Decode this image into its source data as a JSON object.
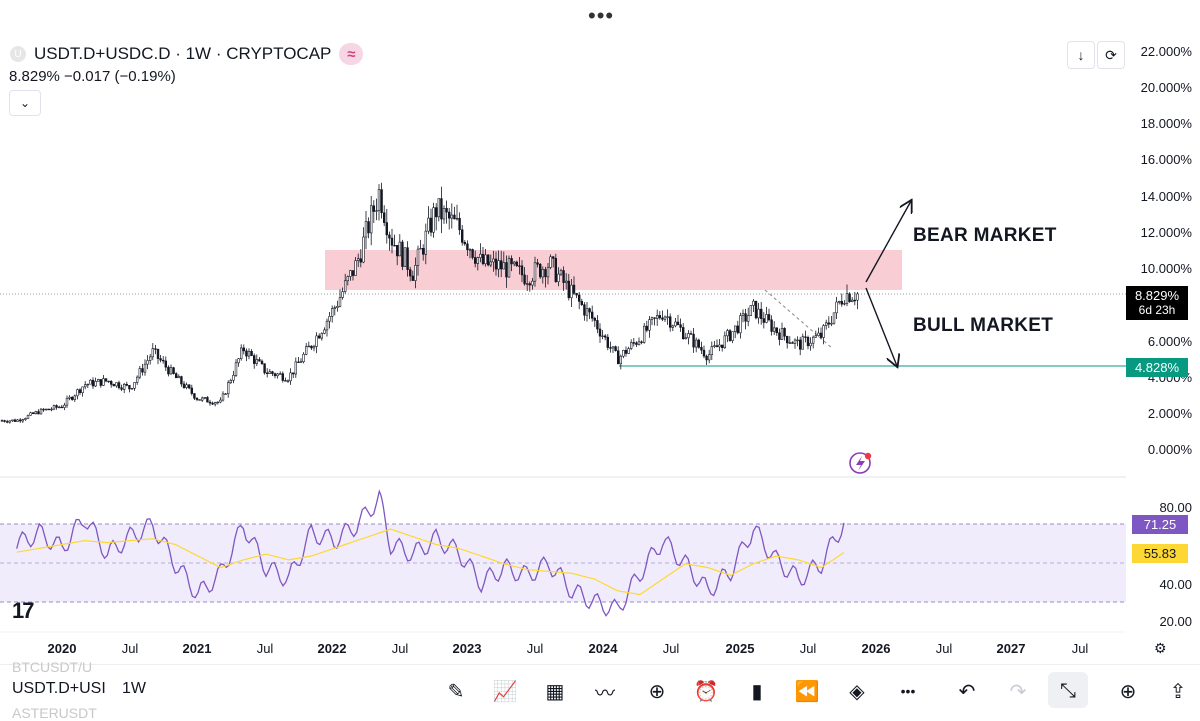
{
  "header": {
    "symbol_icon": "U",
    "title": "USDT.D+USDC.D · 1W · CRYPTOCAP",
    "badge_icon": "≈",
    "price_line": "8.829%  −0.017 (−0.19%)",
    "collapse_icon": "chevron-down-icon",
    "collapse_glyph": "⌄",
    "download_glyph": "↓",
    "fullscreen_glyph": "⟳"
  },
  "top_menu": "•••",
  "price_axis": {
    "labels": [
      "22.000%",
      "20.000%",
      "18.000%",
      "16.000%",
      "14.000%",
      "12.000%",
      "10.000%",
      "6.000%",
      "4.000%",
      "2.000%",
      "0.000%"
    ]
  },
  "price_tags": {
    "current": "8.829%",
    "countdown": "6d 23h",
    "support": "4.828%",
    "current_color": "#000000",
    "support_color": "#089981"
  },
  "rsi_axis": {
    "labels": [
      "80.00",
      "40.00",
      "20.00"
    ],
    "rsi_tag": "71.25",
    "ma_tag": "55.83",
    "rsi_color": "#7e57c2",
    "ma_color": "#fdd835"
  },
  "time_axis": [
    {
      "label": "2020",
      "year": true
    },
    {
      "label": "Jul",
      "year": false
    },
    {
      "label": "2021",
      "year": true
    },
    {
      "label": "Jul",
      "year": false
    },
    {
      "label": "2022",
      "year": true
    },
    {
      "label": "Jul",
      "year": false
    },
    {
      "label": "2023",
      "year": true
    },
    {
      "label": "Jul",
      "year": false
    },
    {
      "label": "2024",
      "year": true
    },
    {
      "label": "Jul",
      "year": false
    },
    {
      "label": "2025",
      "year": true
    },
    {
      "label": "Jul",
      "year": false
    },
    {
      "label": "2026",
      "year": true
    },
    {
      "label": "Jul",
      "year": false
    },
    {
      "label": "2027",
      "year": true
    },
    {
      "label": "Jul",
      "year": false
    }
  ],
  "annotations": {
    "bear": "BEAR MARKET",
    "bull": "BULL MARKET"
  },
  "logo": "17",
  "toolbar": {
    "symbol": "USDT.D+USI",
    "ghost_top": "BTCUSDT/U",
    "ghost_bottom": "ASTERUSDT",
    "timeframe": "1W",
    "icons": [
      {
        "name": "draw-icon",
        "glyph": "✎",
        "active": false,
        "dim": false
      },
      {
        "name": "indicators-icon",
        "glyph": "📈",
        "active": false,
        "dim": false
      },
      {
        "name": "layout-grid-icon",
        "glyph": "▦",
        "active": false,
        "dim": false
      },
      {
        "name": "compare-icon",
        "glyph": "〰",
        "active": false,
        "dim": false
      },
      {
        "name": "add-icon",
        "glyph": "⊕",
        "active": false,
        "dim": false
      },
      {
        "name": "alert-clock-icon",
        "glyph": "⏰",
        "active": false,
        "dim": false
      },
      {
        "name": "candles-icon",
        "glyph": "▮",
        "active": false,
        "dim": false
      },
      {
        "name": "replay-icon",
        "glyph": "⏪",
        "active": false,
        "dim": false
      },
      {
        "name": "layers-icon",
        "glyph": "◈",
        "active": false,
        "dim": false
      },
      {
        "name": "more-icon",
        "glyph": "•••",
        "active": false,
        "dim": false
      },
      {
        "name": "undo-icon",
        "glyph": "↶",
        "active": false,
        "dim": false
      },
      {
        "name": "redo-icon",
        "glyph": "↷",
        "active": false,
        "dim": true
      },
      {
        "name": "collapse-icon",
        "glyph": "⤡",
        "active": true,
        "dim": false
      },
      {
        "name": "zoom-icon",
        "glyph": "⊕",
        "active": false,
        "dim": false
      },
      {
        "name": "share-icon",
        "glyph": "⇪",
        "active": false,
        "dim": false
      }
    ]
  },
  "chart_data": [
    {
      "type": "candlestick",
      "title": "USDT.D+USDC.D · 1W · CRYPTOCAP",
      "unit": "%",
      "ylim": [
        0,
        22
      ],
      "x_range": [
        "2019-09",
        "2027-10"
      ],
      "series": [
        {
          "name": "USDT.D+USDC.D",
          "x": [
            "2019-09",
            "2019-11",
            "2020-01",
            "2020-03",
            "2020-05",
            "2020-07",
            "2020-09",
            "2020-11",
            "2021-01",
            "2021-03",
            "2021-05",
            "2021-07",
            "2021-09",
            "2021-11",
            "2022-01",
            "2022-03",
            "2022-05",
            "2022-06",
            "2022-08",
            "2022-10",
            "2022-12",
            "2023-02",
            "2023-04",
            "2023-06",
            "2023-08",
            "2023-10",
            "2023-12",
            "2024-02",
            "2024-04",
            "2024-06",
            "2024-08",
            "2024-10",
            "2024-12",
            "2025-02",
            "2025-04",
            "2025-06",
            "2025-08",
            "2025-10"
          ],
          "values": [
            1.8,
            2.3,
            2.6,
            3.8,
            4.0,
            3.6,
            5.6,
            4.2,
            3.0,
            2.8,
            5.8,
            4.5,
            4.2,
            6.0,
            8.0,
            10.5,
            14.5,
            12.0,
            10.0,
            13.5,
            12.5,
            10.5,
            10.3,
            9.8,
            10.5,
            8.8,
            7.3,
            5.2,
            6.4,
            7.8,
            6.6,
            5.4,
            6.6,
            8.0,
            6.8,
            6.0,
            6.5,
            8.8
          ]
        }
      ],
      "current_value": 8.829,
      "support_level": 4.828,
      "resistance_zone": [
        9.0,
        11.2
      ],
      "annotations": [
        "BEAR MARKET",
        "BULL MARKET"
      ]
    },
    {
      "type": "line",
      "title": "RSI",
      "ylim": [
        10,
        90
      ],
      "bands": [
        30,
        50,
        70
      ],
      "series": [
        {
          "name": "RSI",
          "x": [
            "2019-09",
            "2019-11",
            "2020-01",
            "2020-03",
            "2020-05",
            "2020-07",
            "2020-09",
            "2020-11",
            "2021-01",
            "2021-03",
            "2021-05",
            "2021-07",
            "2021-09",
            "2021-11",
            "2022-01",
            "2022-03",
            "2022-05",
            "2022-06",
            "2022-08",
            "2022-10",
            "2022-12",
            "2023-02",
            "2023-04",
            "2023-06",
            "2023-08",
            "2023-10",
            "2023-12",
            "2024-02",
            "2024-04",
            "2024-06",
            "2024-08",
            "2024-10",
            "2024-12",
            "2025-02",
            "2025-04",
            "2025-06",
            "2025-08",
            "2025-10"
          ],
          "values": [
            60,
            66,
            58,
            74,
            55,
            64,
            70,
            50,
            34,
            45,
            70,
            48,
            42,
            66,
            62,
            70,
            84,
            60,
            55,
            63,
            56,
            40,
            48,
            44,
            50,
            36,
            30,
            26,
            45,
            62,
            50,
            36,
            46,
            68,
            52,
            42,
            50,
            71.25
          ]
        },
        {
          "name": "RSI MA",
          "x": [
            "2019-09",
            "2019-11",
            "2020-01",
            "2020-03",
            "2020-05",
            "2020-07",
            "2020-09",
            "2020-11",
            "2021-01",
            "2021-03",
            "2021-05",
            "2021-07",
            "2021-09",
            "2021-11",
            "2022-01",
            "2022-03",
            "2022-05",
            "2022-06",
            "2022-08",
            "2022-10",
            "2022-12",
            "2023-02",
            "2023-04",
            "2023-06",
            "2023-08",
            "2023-10",
            "2023-12",
            "2024-02",
            "2024-04",
            "2024-06",
            "2024-08",
            "2024-10",
            "2024-12",
            "2025-02",
            "2025-04",
            "2025-06",
            "2025-08",
            "2025-10"
          ],
          "values": [
            56,
            58,
            60,
            62,
            61,
            62,
            63,
            60,
            54,
            48,
            52,
            55,
            52,
            54,
            58,
            62,
            66,
            68,
            64,
            60,
            58,
            54,
            50,
            47,
            46,
            45,
            42,
            36,
            34,
            42,
            50,
            48,
            44,
            50,
            54,
            52,
            48,
            55.83
          ]
        }
      ]
    }
  ]
}
